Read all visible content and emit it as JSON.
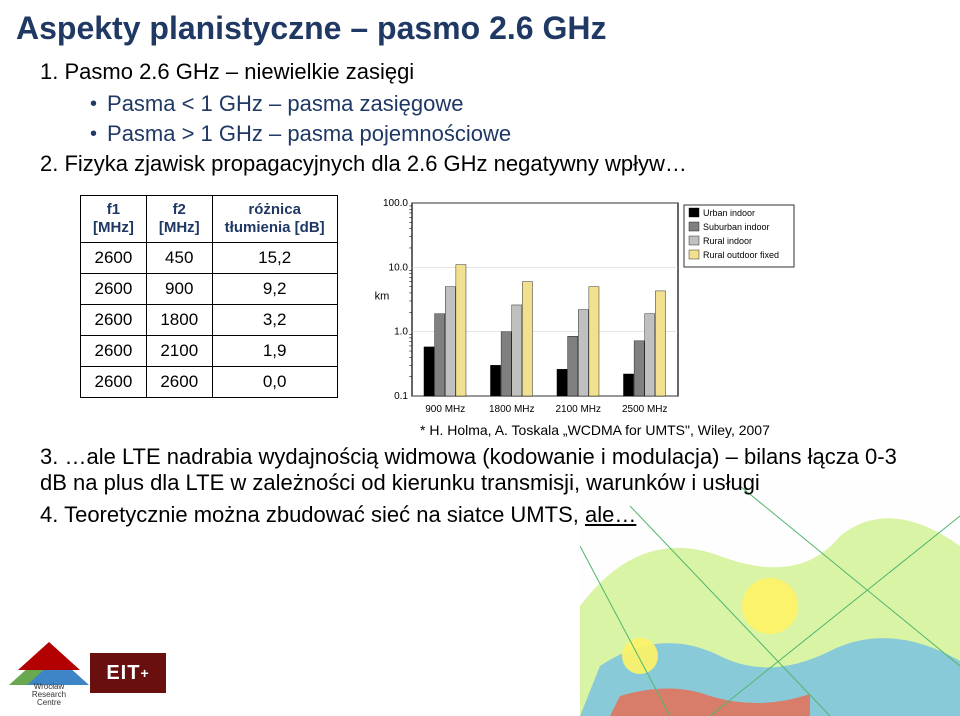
{
  "title": "Aspekty planistyczne – pasmo 2.6 GHz",
  "items": {
    "i1_num": "1.",
    "i1_text": "Pasmo 2.6 GHz – niewielkie zasięgi",
    "i1_sub1": "Pasma < 1 GHz – pasma zasięgowe",
    "i1_sub2": "Pasma > 1 GHz – pasma pojemnościowe",
    "i2_num": "2.",
    "i2_text": "Fizyka zjawisk propagacyjnych dla 2.6 GHz negatywny wpływ…",
    "i3_num": "3.",
    "i3_text": "…ale LTE nadrabia wydajnością widmowa (kodowanie i modulacja) – bilans łącza 0-3 dB na plus dla LTE w zależności od kierunku transmisji, warunków i usługi",
    "i4_num": "4.",
    "i4_text_a": "Teoretycznie można zbudować sieć na siatce UMTS, ",
    "i4_text_b": "ale…"
  },
  "table": {
    "h1": "f1\n[MHz]",
    "h2": "f2\n[MHz]",
    "h3": "różnica\ntłumienia [dB]",
    "rows": [
      [
        "2600",
        "450",
        "15,2"
      ],
      [
        "2600",
        "900",
        "9,2"
      ],
      [
        "2600",
        "1800",
        "3,2"
      ],
      [
        "2600",
        "2100",
        "1,9"
      ],
      [
        "2600",
        "2600",
        "0,0"
      ]
    ]
  },
  "chart": {
    "y_label": "km",
    "y_ticks": [
      "100.0",
      "10.0",
      "1.0",
      "0.1"
    ],
    "x_ticks": [
      "900 MHz",
      "1800 MHz",
      "2100 MHz",
      "2500 MHz"
    ],
    "legend": [
      "Urban indoor",
      "Suburban indoor",
      "Rural indoor",
      "Rural outdoor fixed"
    ],
    "legend_colors": [
      "#000000",
      "#808080",
      "#c0c0c0",
      "#f0e090"
    ],
    "groups": [
      [
        0.58,
        1.9,
        5.0,
        11.0
      ],
      [
        0.3,
        1.0,
        2.6,
        6.0
      ],
      [
        0.26,
        0.85,
        2.2,
        5.0
      ],
      [
        0.22,
        0.72,
        1.9,
        4.3
      ]
    ],
    "ylim": [
      0.1,
      100.0
    ],
    "colors": {
      "axis": "#000000",
      "grid": "#000000",
      "bg": "#ffffff",
      "text": "#000000"
    }
  },
  "credit": "* H. Holma, A. Toskala „WCDMA for UMTS\", Wiley, 2007",
  "logos": {
    "wrc": "Wrocław\nResearch\nCentre",
    "eit": "EIT",
    "eit_plus": "+"
  }
}
